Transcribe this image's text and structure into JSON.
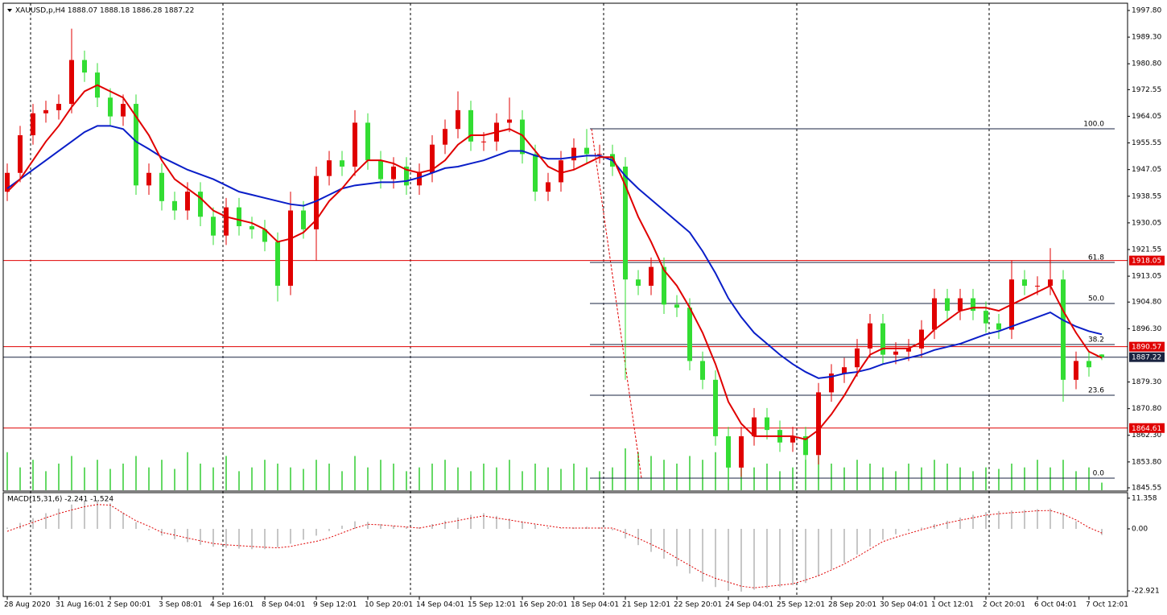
{
  "chart_data": {
    "type": "candlestick",
    "title": "XAUUSD,p,H4  1888.07 1888.18 1886.28 1887.22",
    "categories": [
      "28 Aug 2020",
      null,
      null,
      null,
      "31 Aug 16:01",
      null,
      null,
      null,
      "2 Sep 00:01",
      null,
      null,
      null,
      "3 Sep 08:01",
      null,
      null,
      null,
      "4 Sep 16:01",
      null,
      null,
      null,
      "8 Sep 04:01",
      null,
      null,
      null,
      "9 Sep 12:01",
      null,
      null,
      null,
      "10 Sep 20:01",
      null,
      null,
      null,
      "14 Sep 04:01",
      null,
      null,
      null,
      "15 Sep 12:01",
      null,
      null,
      null,
      "16 Sep 20:01",
      null,
      null,
      null,
      "18 Sep 04:01",
      null,
      null,
      null,
      "21 Sep 12:01",
      null,
      null,
      null,
      "22 Sep 20:01",
      null,
      null,
      null,
      "24 Sep 04:01",
      null,
      null,
      null,
      "25 Sep 12:01",
      null,
      null,
      null,
      "28 Sep 20:01",
      null,
      null,
      null,
      "30 Sep 04:01",
      null,
      null,
      null,
      "1 Oct 12:01",
      null,
      null,
      null,
      "2 Oct 20:01",
      null,
      null,
      null,
      "6 Oct 04:01",
      null,
      null,
      null,
      "7 Oct 12:01",
      null
    ],
    "open": [
      1940,
      1946,
      1958,
      1965,
      1966,
      1968,
      1982,
      1978,
      1970,
      1964,
      1968,
      1942,
      1946,
      1937,
      1934,
      1940,
      1932,
      1926,
      1935,
      1929,
      1928,
      1924,
      1910,
      1934,
      1928,
      1945,
      1950,
      1948,
      1962,
      1950,
      1944,
      1948,
      1942,
      1946,
      1955,
      1960,
      1966,
      1956,
      1956,
      1962,
      1963,
      1952,
      1940,
      1943,
      1950,
      1954,
      1952,
      1952,
      1948,
      1912,
      1910,
      1916,
      1904,
      1903,
      1886,
      1880,
      1862,
      1852,
      1862,
      1868,
      1864,
      1860,
      1862,
      1856,
      1876,
      1882,
      1884,
      1890,
      1898,
      1888,
      1889,
      1890,
      1896,
      1906,
      1902,
      1906,
      1902,
      1898,
      1896,
      1912,
      1910,
      1910,
      1912,
      1880,
      1886,
      1888.07
    ],
    "high": [
      1949,
      1961,
      1968,
      1969,
      1971,
      1992,
      1985,
      1981,
      1973,
      1971,
      1971,
      1949,
      1949,
      1940,
      1943,
      1943,
      1935,
      1938,
      1938,
      1932,
      1931,
      1927,
      1940,
      1937,
      1948,
      1953,
      1953,
      1966,
      1965,
      1953,
      1951,
      1951,
      1949,
      1958,
      1963,
      1972,
      1969,
      1959,
      1965,
      1970,
      1966,
      1955,
      1946,
      1953,
      1957,
      1960,
      1955,
      1955,
      1951,
      1915,
      1919,
      1919,
      1907,
      1906,
      1889,
      1883,
      1865,
      1865,
      1871,
      1871,
      1867,
      1865,
      1865,
      1879,
      1885,
      1887,
      1893,
      1901,
      1901,
      1892,
      1893,
      1899,
      1909,
      1909,
      1909,
      1909,
      1905,
      1901,
      1918,
      1915,
      1913,
      1922,
      1915,
      1889,
      1889,
      1888.18
    ],
    "low": [
      1937,
      1943,
      1955,
      1962,
      1963,
      1965,
      1975,
      1967,
      1961,
      1961,
      1939,
      1939,
      1934,
      1931,
      1931,
      1929,
      1923,
      1923,
      1926,
      1925,
      1921,
      1905,
      1907,
      1925,
      1918,
      1942,
      1945,
      1945,
      1947,
      1941,
      1941,
      1939,
      1939,
      1943,
      1952,
      1957,
      1953,
      1953,
      1953,
      1959,
      1949,
      1937,
      1937,
      1940,
      1947,
      1949,
      1949,
      1945,
      1880,
      1907,
      1907,
      1901,
      1900,
      1883,
      1877,
      1859,
      1847,
      1849,
      1859,
      1861,
      1857,
      1857,
      1848,
      1853,
      1873,
      1879,
      1881,
      1887,
      1885,
      1885,
      1886,
      1887,
      1893,
      1899,
      1899,
      1899,
      1895,
      1893,
      1893,
      1907,
      1907,
      1907,
      1873,
      1877,
      1881,
      1886.28
    ],
    "close": [
      1946,
      1958,
      1965,
      1966,
      1968,
      1982,
      1978,
      1970,
      1964,
      1968,
      1942,
      1946,
      1937,
      1934,
      1940,
      1932,
      1926,
      1935,
      1929,
      1928,
      1924,
      1910,
      1934,
      1928,
      1945,
      1950,
      1948,
      1962,
      1950,
      1944,
      1948,
      1942,
      1946,
      1955,
      1960,
      1966,
      1956,
      1956,
      1962,
      1963,
      1952,
      1940,
      1943,
      1950,
      1954,
      1952,
      1952,
      1948,
      1912,
      1910,
      1916,
      1904,
      1903,
      1886,
      1880,
      1862,
      1852,
      1862,
      1868,
      1864,
      1860,
      1862,
      1856,
      1876,
      1882,
      1884,
      1890,
      1898,
      1888,
      1889,
      1890,
      1896,
      1906,
      1902,
      1906,
      1902,
      1898,
      1896,
      1912,
      1910,
      1910,
      1912,
      1880,
      1886,
      1884,
      1887.22
    ],
    "up_color": "#e00000",
    "down_color": "#33dd33",
    "ma_fast": {
      "color": "#e00000",
      "values": [
        1940,
        1944,
        1950,
        1956,
        1961,
        1967,
        1972,
        1974,
        1972,
        1970,
        1964,
        1958,
        1950,
        1944,
        1941,
        1938,
        1934,
        1932,
        1931,
        1930,
        1928,
        1924,
        1925,
        1927,
        1931,
        1937,
        1941,
        1946,
        1950,
        1950,
        1949,
        1947,
        1946,
        1947,
        1950,
        1955,
        1958,
        1958,
        1959,
        1960,
        1958,
        1953,
        1948,
        1946,
        1947,
        1949,
        1951,
        1951,
        1942,
        1932,
        1924,
        1915,
        1910,
        1903,
        1895,
        1885,
        1873,
        1866,
        1862,
        1862,
        1862,
        1862,
        1861,
        1864,
        1869,
        1875,
        1882,
        1888,
        1890,
        1890,
        1890,
        1892,
        1896,
        1899,
        1902,
        1903,
        1903,
        1902,
        1904,
        1906,
        1908,
        1910,
        1902,
        1895,
        1889,
        1887
      ]
    },
    "ma_slow": {
      "color": "#0a1ec8",
      "values": [
        1941,
        1944,
        1947,
        1950,
        1953,
        1956,
        1959,
        1961,
        1961,
        1960,
        1956,
        1953.6,
        1951,
        1949,
        1947,
        1945.5,
        1944,
        1942,
        1940,
        1939,
        1938,
        1937,
        1936,
        1935.5,
        1937,
        1939,
        1941,
        1942,
        1942.5,
        1943,
        1943,
        1943.4,
        1944.5,
        1946,
        1947.5,
        1948,
        1949,
        1950,
        1951.5,
        1953,
        1953,
        1951.5,
        1950.5,
        1950.5,
        1951,
        1951.5,
        1951.5,
        1950,
        1945,
        1941,
        1937.5,
        1934,
        1930.5,
        1927,
        1921,
        1914,
        1906,
        1900,
        1895,
        1891.5,
        1888,
        1885,
        1882.5,
        1880.5,
        1881,
        1882,
        1882.5,
        1883.5,
        1885,
        1886,
        1887,
        1888,
        1889.5,
        1890.5,
        1891.5,
        1893,
        1894.5,
        1895.5,
        1897,
        1898.5,
        1900,
        1901.5,
        1899,
        1897,
        1895.5,
        1894.5
      ]
    },
    "volume": {
      "color": "#33cc33",
      "values": [
        50,
        30,
        40,
        25,
        35,
        45,
        30,
        40,
        28,
        35,
        45,
        30,
        40,
        28,
        50,
        35,
        30,
        45,
        25,
        30,
        40,
        35,
        30,
        28,
        40,
        35,
        25,
        45,
        30,
        40,
        35,
        25,
        30,
        35,
        40,
        30,
        25,
        35,
        30,
        40,
        25,
        35,
        30,
        28,
        35,
        30,
        25,
        30,
        55,
        50,
        45,
        40,
        35,
        45,
        40,
        50,
        35,
        40,
        30,
        35,
        25,
        30,
        40,
        45,
        35,
        30,
        40,
        35,
        30,
        25,
        35,
        30,
        40,
        35,
        30,
        25,
        30,
        28,
        35,
        30,
        40,
        30,
        40,
        25,
        30,
        10
      ]
    },
    "ylim": [
      1844.52,
      2000.11
    ],
    "yticks": [
      {
        "value": 1997.8,
        "label": "1997.80"
      },
      {
        "value": 1989.3,
        "label": "1989.30"
      },
      {
        "value": 1980.8,
        "label": "1980.80"
      },
      1972.55,
      1964.05,
      1955.55,
      1947.05,
      1938.55,
      1930.05,
      1921.55,
      1913.05,
      {
        "value": 1904.8,
        "label": "1904.80"
      },
      {
        "value": 1896.3,
        "label": "1896.30"
      },
      {
        "value": 1879.3,
        "label": "1879.30"
      },
      {
        "value": 1870.8,
        "label": "1870.80"
      },
      {
        "value": 1862.3,
        "label": "1862.30"
      },
      {
        "value": 1853.8,
        "label": "1853.80"
      },
      1845.55
    ],
    "price_lines": [
      {
        "value": 1918.05,
        "color": "#e00000"
      },
      {
        "value": 1890.57,
        "color": "#e00000"
      },
      {
        "value": 1887.22,
        "color": "#1a2340"
      },
      {
        "value": 1864.61,
        "color": "#e00000"
      }
    ],
    "fibonacci": {
      "color": "#1a2340",
      "line_color": "#e00000",
      "levels": [
        {
          "label": "100.0",
          "price": 1960.06
        },
        {
          "label": "61.8",
          "price": 1917.44
        },
        {
          "label": "50.0",
          "price": 1904.35
        },
        {
          "label": "38.2",
          "price": 1891.26
        },
        {
          "label": "23.6",
          "price": 1875.08
        },
        {
          "label": "0.0",
          "price": 1848.64
        }
      ]
    },
    "macd": {
      "title": "MACD(15,31,6) -2.241 -1.524",
      "ylim": [
        -24.7,
        13.4
      ],
      "yticks": [
        11.358,
        {
          "value": 0,
          "label": "0.00"
        },
        -22.921
      ],
      "histogram_color": "#b4b4b4",
      "signal_color": "#e00000",
      "histogram": [
        0.5,
        2.2,
        4.0,
        5.8,
        7.5,
        9.0,
        10.3,
        10.7,
        9.5,
        6.0,
        2.5,
        -0.5,
        -2.5,
        -3.8,
        -4.9,
        -5.9,
        -6.6,
        -7.0,
        -7.3,
        -7.5,
        -7.5,
        -6.8,
        -5.5,
        -4.0,
        -2.5,
        -0.8,
        1.2,
        2.8,
        2.6,
        1.8,
        1.2,
        0.8,
        0.6,
        1.8,
        3.0,
        4.2,
        5.2,
        5.8,
        4.8,
        3.8,
        2.8,
        1.6,
        0.6,
        0.2,
        0.5,
        0.8,
        0.6,
        -0.5,
        -3.5,
        -6.0,
        -8.5,
        -11.0,
        -13.8,
        -16.5,
        -19.5,
        -21.5,
        -22.9,
        -23.2,
        -22.5,
        -22.0,
        -21.5,
        -20.8,
        -20.0,
        -17.5,
        -15.0,
        -12.5,
        -9.5,
        -6.5,
        -4.0,
        -2.0,
        -0.8,
        0.5,
        1.8,
        3.0,
        4.2,
        5.2,
        6.2,
        6.6,
        6.8,
        7.0,
        7.3,
        7.5,
        6.0,
        2.8,
        0.2,
        -2.241
      ],
      "signal": [
        -0.9,
        0.8,
        2.4,
        4.1,
        5.7,
        7.0,
        8.2,
        9.0,
        8.8,
        5.8,
        3.0,
        1.0,
        -1.3,
        -2.3,
        -3.4,
        -4.4,
        -5.4,
        -5.9,
        -6.2,
        -6.5,
        -6.8,
        -7.0,
        -6.5,
        -5.5,
        -4.6,
        -3.3,
        -1.5,
        0.3,
        1.7,
        1.5,
        1.1,
        0.7,
        0.3,
        1.2,
        2.2,
        3.1,
        4.0,
        4.8,
        4.0,
        3.3,
        2.5,
        1.8,
        1.1,
        0.4,
        0.3,
        0.3,
        0.3,
        0.3,
        -1.5,
        -3.5,
        -5.7,
        -8.0,
        -10.8,
        -13.5,
        -16.3,
        -18.3,
        -19.7,
        -21.2,
        -21.8,
        -21.3,
        -20.8,
        -20.3,
        -18.9,
        -17.3,
        -15.2,
        -13.0,
        -10.3,
        -7.5,
        -4.7,
        -3.1,
        -1.7,
        -0.3,
        1.0,
        2.2,
        3.2,
        4.1,
        5.1,
        5.6,
        6.0,
        6.3,
        6.7,
        6.8,
        5.4,
        3.3,
        0.5,
        -1.524
      ]
    }
  }
}
